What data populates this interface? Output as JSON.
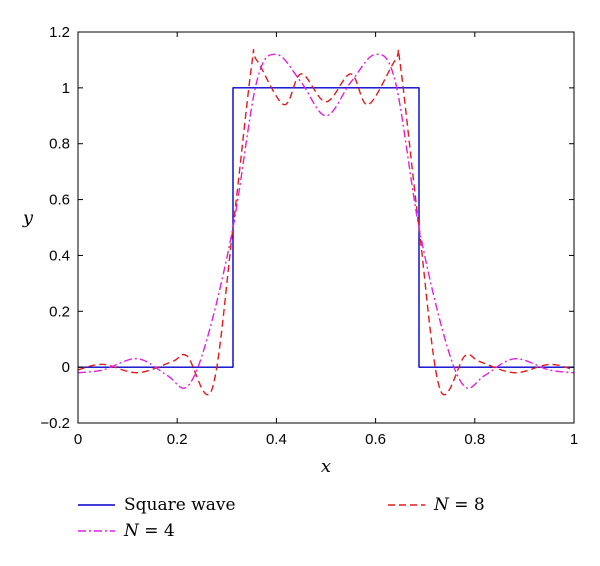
{
  "chart_data": {
    "type": "line",
    "xlabel": "x",
    "ylabel": "y",
    "xlim": [
      0,
      1
    ],
    "ylim": [
      -0.2,
      1.2
    ],
    "x_ticks": [
      "0",
      "0.2",
      "0.4",
      "0.6",
      "0.8",
      "1"
    ],
    "y_ticks": [
      "−0.2",
      "0",
      "0.2",
      "0.4",
      "0.6",
      "0.8",
      "1",
      "1.2"
    ],
    "grid": false,
    "legend_position": "bottom",
    "series": [
      {
        "name": "Square wave",
        "label_main": "Square wave",
        "label_rest": "",
        "color": "#0000cc",
        "style": "solid",
        "x": [
          0,
          0.3125,
          0.3125,
          0.6875,
          0.6875,
          1
        ],
        "y": [
          0,
          0,
          1,
          1,
          0,
          0
        ]
      },
      {
        "name": "N = 8",
        "label_main": "N",
        "label_rest": " = 8",
        "color": "#e41a1c",
        "style": "dashed",
        "x": [
          0.0,
          0.05,
          0.12,
          0.19,
          0.22,
          0.27,
          0.3125,
          0.35,
          0.36,
          0.415,
          0.45,
          0.5,
          0.55,
          0.585,
          0.64,
          0.65,
          0.6875,
          0.73,
          0.78,
          0.81,
          0.88,
          0.95,
          1.0
        ],
        "y": [
          -0.01,
          0.01,
          -0.02,
          0.02,
          0.04,
          -0.08,
          0.5,
          1.08,
          1.1,
          0.94,
          1.05,
          0.95,
          1.05,
          0.94,
          1.1,
          1.08,
          0.5,
          -0.08,
          0.04,
          0.02,
          -0.02,
          0.01,
          -0.01
        ]
      },
      {
        "name": "N = 4",
        "label_main": "N",
        "label_rest": " = 4",
        "color": "#e020e0",
        "style": "dashdot",
        "x": [
          0.0,
          0.05,
          0.12,
          0.18,
          0.22,
          0.26,
          0.3125,
          0.36,
          0.4,
          0.45,
          0.5,
          0.55,
          0.6,
          0.64,
          0.6875,
          0.74,
          0.78,
          0.82,
          0.88,
          0.95,
          1.0
        ],
        "y": [
          -0.02,
          -0.01,
          0.03,
          -0.03,
          -0.07,
          0.1,
          0.5,
          1.02,
          1.12,
          1.02,
          0.9,
          1.02,
          1.12,
          1.02,
          0.5,
          0.1,
          -0.07,
          -0.03,
          0.03,
          -0.01,
          -0.02
        ]
      }
    ]
  }
}
